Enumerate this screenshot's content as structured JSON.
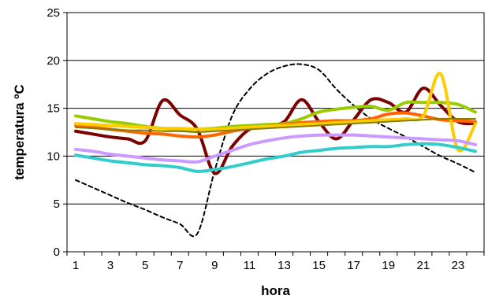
{
  "chart_data": {
    "type": "line",
    "title": "",
    "xlabel": "hora",
    "ylabel": "temperatura ºC",
    "xlim": [
      0.5,
      24.5
    ],
    "ylim": [
      0,
      25
    ],
    "x_ticks": [
      1,
      3,
      5,
      7,
      9,
      11,
      13,
      15,
      17,
      19,
      21,
      23
    ],
    "y_ticks": [
      0,
      5,
      10,
      15,
      20,
      25
    ],
    "grid": "horizontal",
    "legend": "none",
    "x": [
      1,
      2,
      3,
      4,
      5,
      6,
      7,
      8,
      9,
      10,
      11,
      12,
      13,
      14,
      15,
      16,
      17,
      18,
      19,
      20,
      21,
      22,
      23,
      24
    ],
    "series": [
      {
        "color": "#000000",
        "dashed": true,
        "width": 2,
        "values": [
          7.5,
          6.7,
          5.9,
          5.1,
          4.4,
          3.6,
          2.9,
          1.9,
          8.5,
          14.2,
          17.0,
          18.6,
          19.4,
          19.6,
          19.0,
          17.0,
          15.3,
          13.9,
          12.9,
          12.0,
          11.0,
          10.0,
          9.2,
          8.3
        ]
      },
      {
        "color": "#7b0000",
        "dashed": false,
        "width": 4,
        "values": [
          12.6,
          12.3,
          12.0,
          11.8,
          11.6,
          15.8,
          14.3,
          12.8,
          8.2,
          11.0,
          12.8,
          13.2,
          13.6,
          15.9,
          13.6,
          11.8,
          13.8,
          15.9,
          15.6,
          14.6,
          17.1,
          15.3,
          13.6,
          13.4
        ]
      },
      {
        "color": "#99cc00",
        "dashed": false,
        "width": 4,
        "values": [
          14.2,
          13.9,
          13.6,
          13.4,
          13.1,
          12.9,
          12.7,
          12.8,
          12.9,
          13.1,
          13.2,
          13.3,
          13.4,
          13.9,
          14.6,
          14.9,
          15.1,
          15.2,
          14.8,
          15.6,
          15.6,
          15.6,
          15.4,
          14.6
        ]
      },
      {
        "color": "#ff6600",
        "dashed": false,
        "width": 4,
        "values": [
          13.2,
          13.0,
          12.8,
          12.6,
          12.4,
          12.3,
          12.1,
          12.0,
          12.2,
          12.6,
          12.9,
          13.1,
          13.3,
          13.5,
          13.6,
          13.7,
          13.7,
          13.9,
          14.4,
          14.5,
          14.2,
          13.8,
          13.7,
          13.6
        ]
      },
      {
        "color": "#ffcc00",
        "dashed": false,
        "width": 4,
        "values": [
          13.4,
          13.3,
          13.2,
          13.1,
          13.0,
          12.9,
          12.9,
          12.8,
          12.8,
          12.9,
          13.0,
          13.1,
          13.2,
          13.3,
          13.4,
          13.5,
          13.6,
          13.7,
          13.8,
          13.9,
          14.2,
          18.6,
          10.7,
          13.4
        ]
      },
      {
        "color": "#808000",
        "dashed": false,
        "width": 2,
        "values": [
          13.0,
          12.9,
          12.8,
          12.7,
          12.7,
          12.6,
          12.6,
          12.5,
          12.6,
          12.7,
          12.8,
          12.9,
          13.0,
          13.1,
          13.2,
          13.3,
          13.4,
          13.5,
          13.6,
          13.7,
          13.8,
          13.9,
          13.9,
          13.9
        ]
      },
      {
        "color": "#cc99ff",
        "dashed": false,
        "width": 4,
        "values": [
          10.7,
          10.5,
          10.2,
          10.0,
          9.8,
          9.6,
          9.5,
          9.4,
          10.0,
          10.6,
          11.2,
          11.6,
          11.9,
          12.1,
          12.2,
          12.2,
          12.2,
          12.1,
          12.0,
          11.9,
          11.8,
          11.7,
          11.6,
          11.2
        ]
      },
      {
        "color": "#33cccc",
        "dashed": false,
        "width": 4,
        "values": [
          10.1,
          9.8,
          9.5,
          9.3,
          9.1,
          9.0,
          8.8,
          8.4,
          8.6,
          8.9,
          9.3,
          9.7,
          10.0,
          10.4,
          10.6,
          10.8,
          10.9,
          11.0,
          11.0,
          11.2,
          11.3,
          11.2,
          10.9,
          10.5
        ]
      }
    ]
  }
}
